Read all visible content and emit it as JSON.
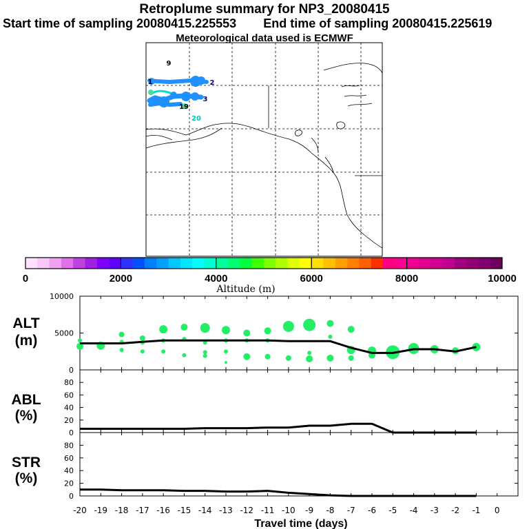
{
  "header": {
    "title": "Retroplume summary for NP3_20080415",
    "start_label": "Start time of sampling 20080415.225553",
    "end_label": "End time of sampling 20080415.225619",
    "met_label": "Meteorological data used is ECMWF"
  },
  "map": {
    "day_labels": [
      {
        "text": "9",
        "color": "#000000"
      },
      {
        "text": "1",
        "color": "#000000"
      },
      {
        "text": "2",
        "color": "#000080"
      },
      {
        "text": "3",
        "color": "#000080"
      },
      {
        "text": "19",
        "color": "#000000"
      },
      {
        "text": "20",
        "color": "#00c8b4"
      }
    ],
    "plume_color": "#1e90ff",
    "plume_color_light": "#00e0d0"
  },
  "colorbar": {
    "label": "Altitude (m)",
    "tick_labels": [
      "0",
      "2000",
      "4000",
      "6000",
      "8000",
      "10000"
    ],
    "colors": [
      "#ffe0ff",
      "#f8c8f8",
      "#f0a0f0",
      "#e070e8",
      "#c040e0",
      "#a020e0",
      "#8000ff",
      "#6000ff",
      "#3030ff",
      "#0050ff",
      "#0080ff",
      "#00a0ff",
      "#00c8ff",
      "#00e6ff",
      "#00ffff",
      "#00ffd0",
      "#00ffa0",
      "#00ff70",
      "#00ff40",
      "#40ff00",
      "#80ff00",
      "#b0ff00",
      "#e0ff00",
      "#ffff00",
      "#ffe000",
      "#ffc000",
      "#ffa000",
      "#ff8000",
      "#ff6000",
      "#ff3000",
      "#ff0080",
      "#ff0090",
      "#f00090",
      "#e00090",
      "#d00090",
      "#c00090",
      "#a00080",
      "#900070",
      "#800070",
      "#700060"
    ]
  },
  "chart_data": [
    {
      "type": "line",
      "name": "ALT",
      "ylabel_line1": "ALT",
      "ylabel_line2": "(m)",
      "ylim": [
        0,
        10000
      ],
      "yticks": [
        0,
        5000,
        10000
      ],
      "x": [
        -20,
        -19,
        -18,
        -17,
        -16,
        -15,
        -14,
        -13,
        -12,
        -11,
        -10,
        -9,
        -8,
        -7,
        -6,
        -5,
        -4,
        -3,
        -2,
        -1
      ],
      "mean": [
        3600,
        3600,
        3600,
        3800,
        4000,
        4000,
        4000,
        4000,
        4000,
        4000,
        3900,
        3900,
        3900,
        3000,
        2300,
        2300,
        2800,
        2800,
        2500,
        3100
      ],
      "bubbles": [
        {
          "x": -20,
          "y": 4000,
          "r": 3
        },
        {
          "x": -20,
          "y": 3200,
          "r": 5
        },
        {
          "x": -19,
          "y": 3300,
          "r": 6
        },
        {
          "x": -18,
          "y": 4800,
          "r": 4
        },
        {
          "x": -18,
          "y": 3800,
          "r": 3
        },
        {
          "x": -18,
          "y": 2700,
          "r": 3
        },
        {
          "x": -17,
          "y": 4300,
          "r": 4
        },
        {
          "x": -17,
          "y": 3700,
          "r": 3
        },
        {
          "x": -17,
          "y": 2500,
          "r": 3
        },
        {
          "x": -16,
          "y": 5500,
          "r": 6
        },
        {
          "x": -16,
          "y": 4000,
          "r": 3
        },
        {
          "x": -16,
          "y": 2500,
          "r": 3
        },
        {
          "x": -15,
          "y": 5800,
          "r": 5
        },
        {
          "x": -15,
          "y": 4200,
          "r": 3
        },
        {
          "x": -15,
          "y": 2000,
          "r": 3
        },
        {
          "x": -14,
          "y": 5700,
          "r": 7
        },
        {
          "x": -14,
          "y": 3700,
          "r": 3
        },
        {
          "x": -14,
          "y": 2400,
          "r": 3
        },
        {
          "x": -14,
          "y": 1900,
          "r": 3
        },
        {
          "x": -13,
          "y": 5400,
          "r": 6
        },
        {
          "x": -13,
          "y": 4000,
          "r": 3
        },
        {
          "x": -13,
          "y": 2500,
          "r": 3
        },
        {
          "x": -13,
          "y": 1000,
          "r": 2
        },
        {
          "x": -12,
          "y": 5000,
          "r": 5
        },
        {
          "x": -12,
          "y": 4000,
          "r": 3
        },
        {
          "x": -12,
          "y": 1800,
          "r": 5
        },
        {
          "x": -11,
          "y": 5300,
          "r": 5
        },
        {
          "x": -11,
          "y": 4000,
          "r": 3
        },
        {
          "x": -11,
          "y": 1800,
          "r": 4
        },
        {
          "x": -10,
          "y": 5900,
          "r": 8
        },
        {
          "x": -10,
          "y": 1600,
          "r": 4
        },
        {
          "x": -9,
          "y": 6100,
          "r": 9
        },
        {
          "x": -9,
          "y": 2300,
          "r": 3
        },
        {
          "x": -9,
          "y": 1500,
          "r": 5
        },
        {
          "x": -8,
          "y": 6300,
          "r": 5
        },
        {
          "x": -8,
          "y": 4500,
          "r": 3
        },
        {
          "x": -8,
          "y": 1600,
          "r": 5
        },
        {
          "x": -7,
          "y": 5500,
          "r": 5
        },
        {
          "x": -7,
          "y": 2700,
          "r": 6
        },
        {
          "x": -7,
          "y": 1600,
          "r": 4
        },
        {
          "x": -6,
          "y": 2600,
          "r": 6
        },
        {
          "x": -6,
          "y": 2000,
          "r": 5
        },
        {
          "x": -5,
          "y": 2400,
          "r": 10
        },
        {
          "x": -4,
          "y": 2900,
          "r": 8
        },
        {
          "x": -3,
          "y": 2800,
          "r": 6
        },
        {
          "x": -2,
          "y": 2600,
          "r": 5
        },
        {
          "x": -1,
          "y": 3100,
          "r": 6
        }
      ],
      "bubble_color": "#22ee66"
    },
    {
      "type": "line",
      "name": "ABL",
      "ylabel_line1": "ABL",
      "ylabel_line2": "(%)",
      "ylim": [
        0,
        100
      ],
      "yticks": [
        0,
        20,
        40,
        60,
        80
      ],
      "x": [
        -20,
        -19,
        -18,
        -17,
        -16,
        -15,
        -14,
        -13,
        -12,
        -11,
        -10,
        -9,
        -8,
        -7,
        -6,
        -5,
        -4,
        -3,
        -2,
        -1
      ],
      "values": [
        6,
        6,
        6,
        6,
        6,
        6,
        7,
        7,
        7,
        8,
        8,
        11,
        11,
        14,
        14,
        0,
        0,
        0,
        0,
        0
      ]
    },
    {
      "type": "line",
      "name": "STR",
      "ylabel_line1": "STR",
      "ylabel_line2": "(%)",
      "ylim": [
        0,
        100
      ],
      "yticks": [
        0,
        20,
        40,
        60,
        80
      ],
      "xlabel": "Travel time (days)",
      "xticks": [
        -20,
        -19,
        -18,
        -17,
        -16,
        -15,
        -14,
        -13,
        -12,
        -11,
        -10,
        -9,
        -8,
        -7,
        -6,
        -5,
        -4,
        -3,
        -2,
        -1,
        0
      ],
      "x": [
        -20,
        -19,
        -18,
        -17,
        -16,
        -15,
        -14,
        -13,
        -12,
        -11,
        -10,
        -9,
        -8,
        -7,
        -6,
        -5,
        -4,
        -3,
        -2,
        -1
      ],
      "values": [
        10,
        10,
        9,
        9,
        9,
        8,
        8,
        7,
        7,
        8,
        5,
        3,
        1,
        0,
        0,
        0,
        0,
        0,
        0,
        0
      ]
    }
  ]
}
